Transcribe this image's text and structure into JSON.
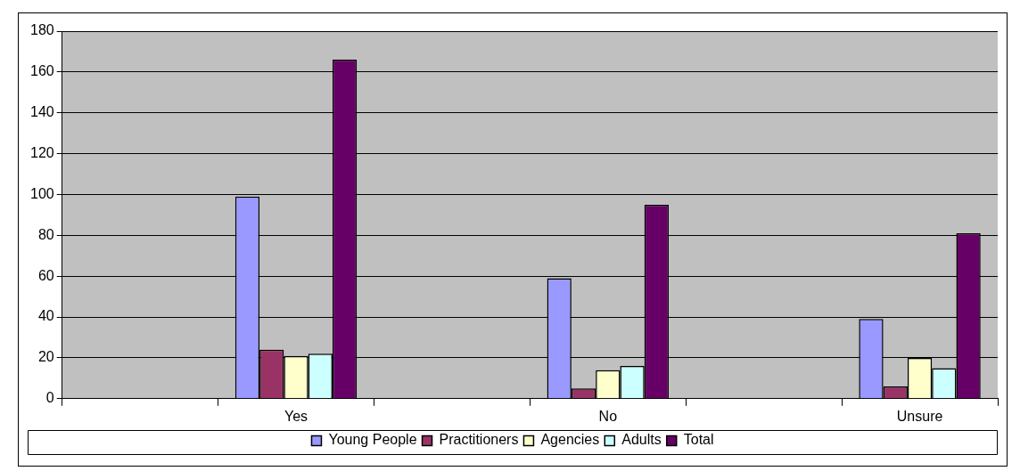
{
  "chart_data": {
    "type": "bar",
    "categories": [
      null,
      "Yes",
      null,
      "No",
      null,
      "Unsure"
    ],
    "series": [
      {
        "name": "Young People",
        "color": "#9999ff",
        "values": [
          null,
          99,
          null,
          59,
          null,
          39
        ]
      },
      {
        "name": "Practitioners",
        "color": "#993366",
        "values": [
          null,
          24,
          null,
          5,
          null,
          6
        ]
      },
      {
        "name": "Agencies",
        "color": "#ffffcc",
        "values": [
          null,
          21,
          null,
          14,
          null,
          20
        ]
      },
      {
        "name": "Adults",
        "color": "#ccffff",
        "values": [
          null,
          22,
          null,
          16,
          null,
          15
        ]
      },
      {
        "name": "Total",
        "color": "#660066",
        "values": [
          null,
          166,
          null,
          95,
          null,
          81
        ]
      }
    ],
    "ylim": [
      0,
      180
    ],
    "yticks": [
      0,
      20,
      40,
      60,
      80,
      100,
      120,
      140,
      160,
      180
    ],
    "grid": "y",
    "legend": "bottom"
  }
}
